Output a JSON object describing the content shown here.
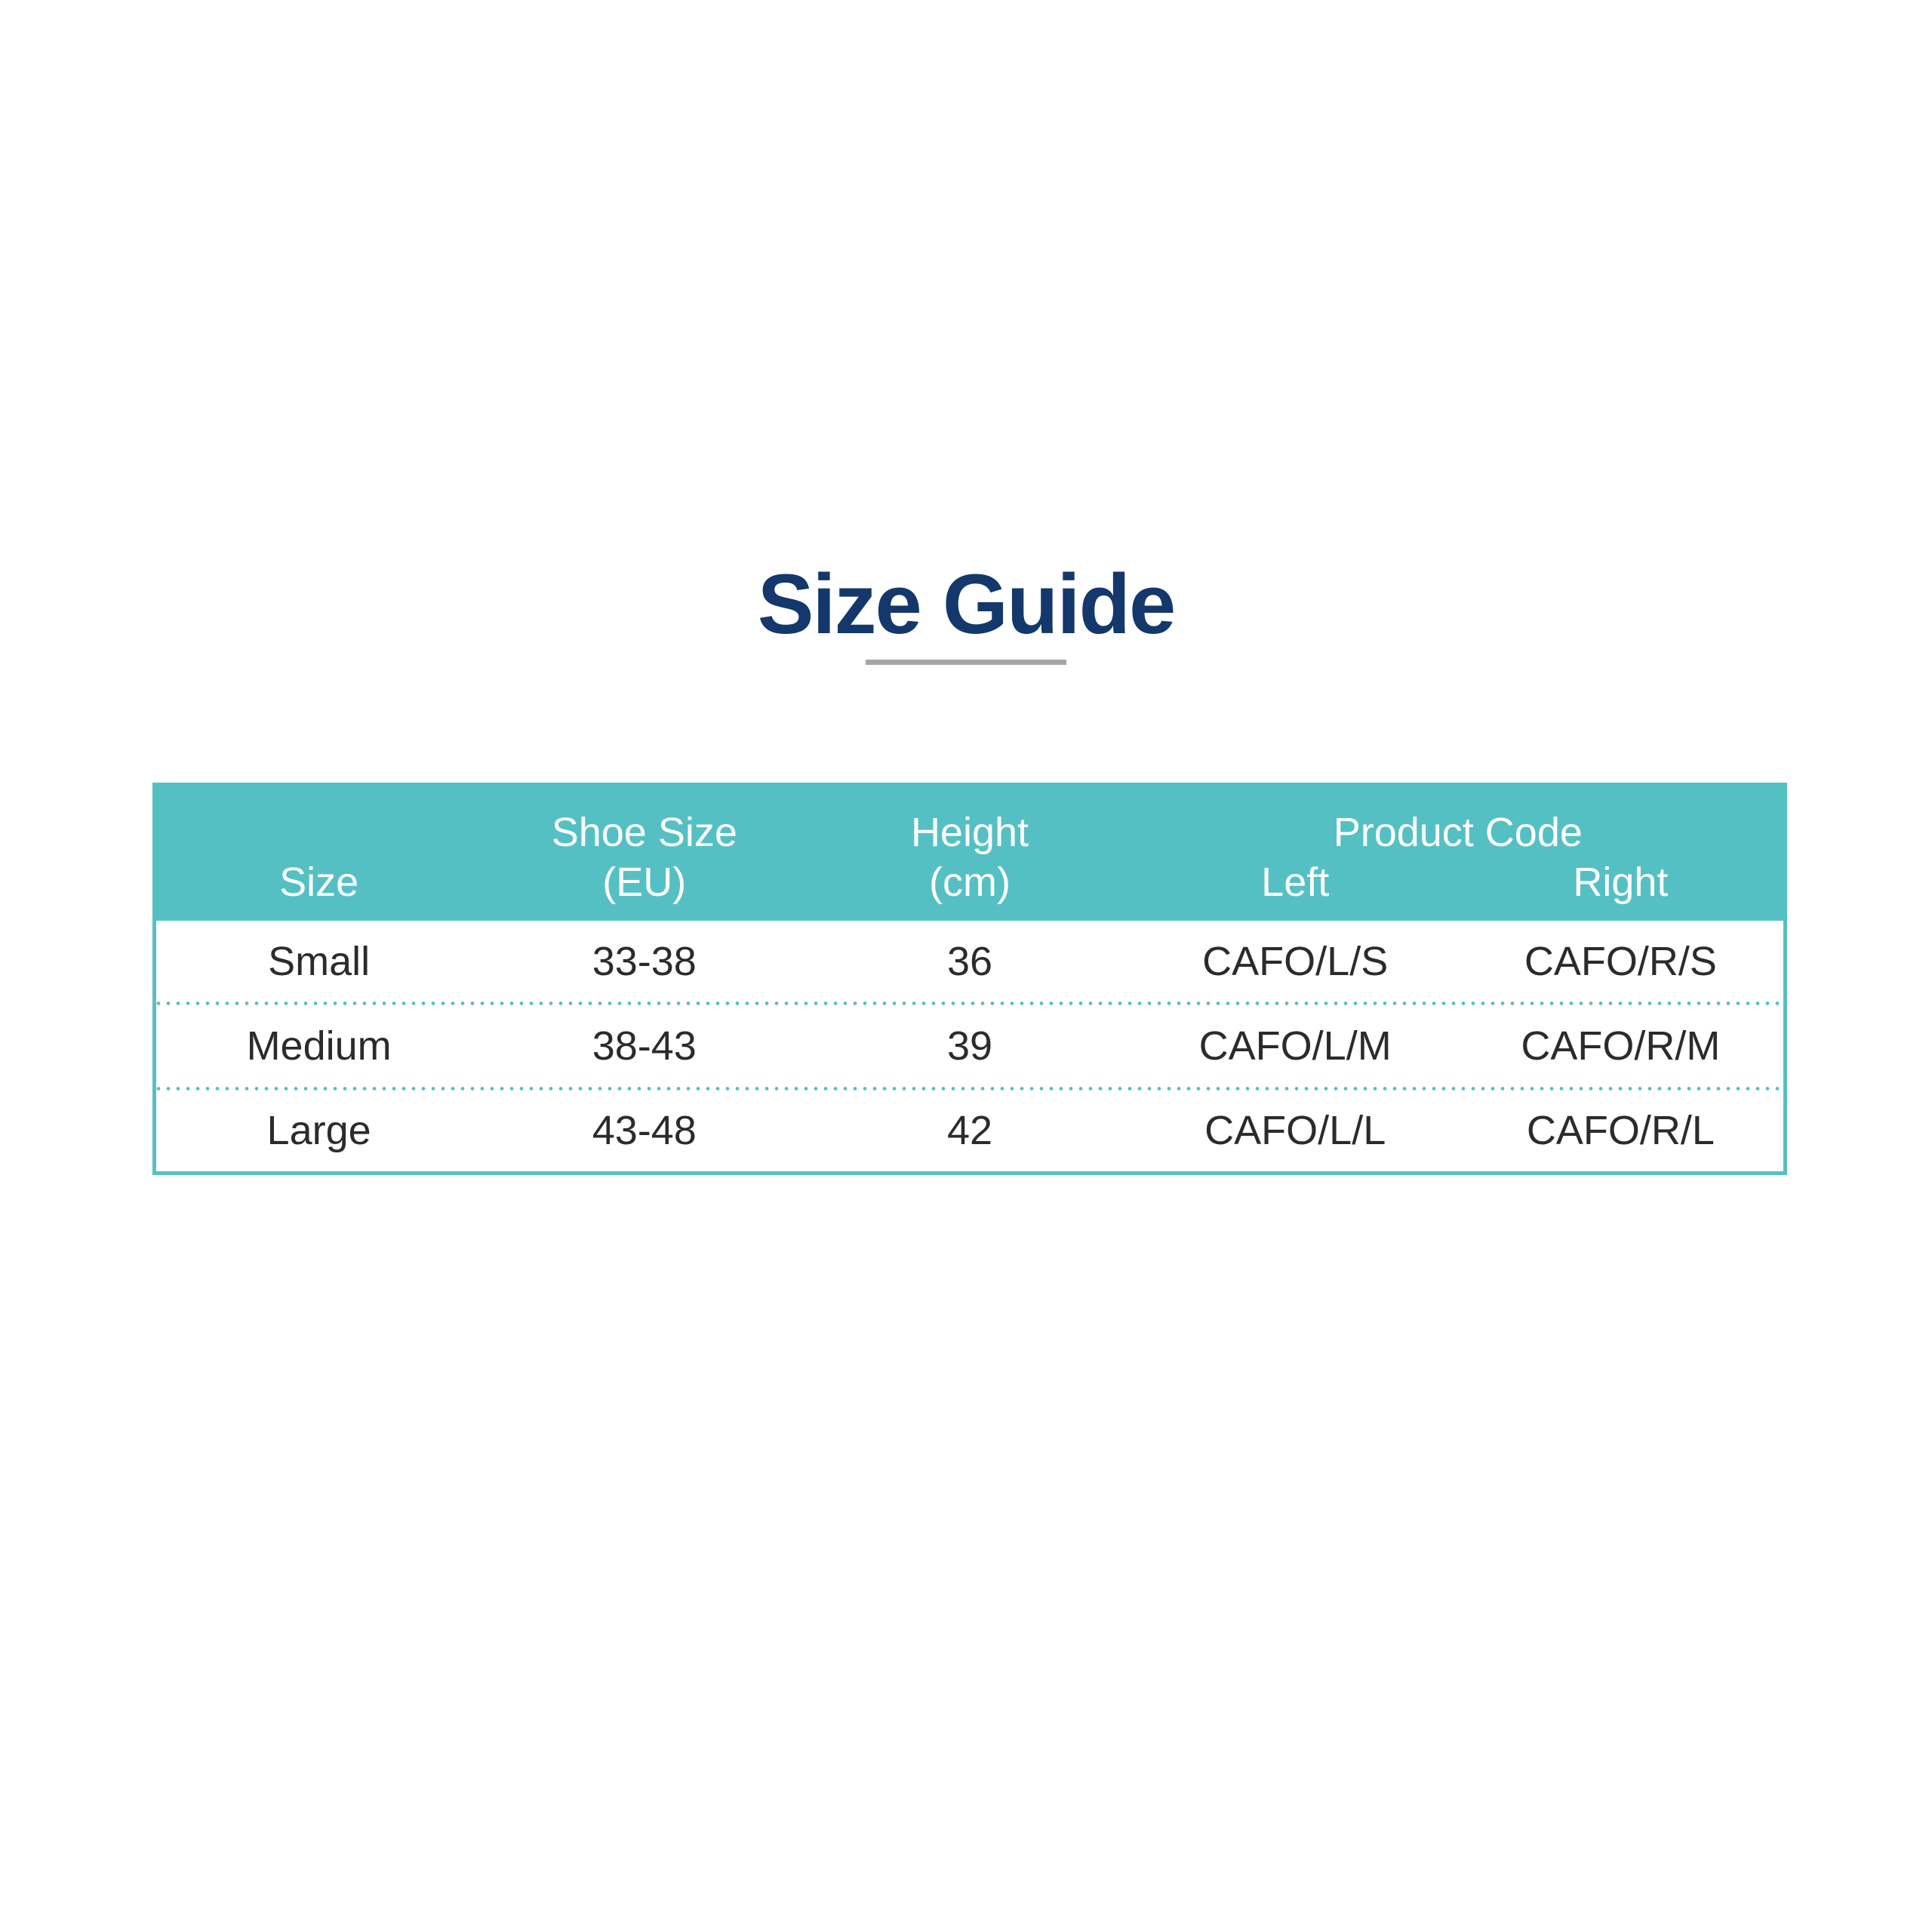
{
  "colors": {
    "accent_teal": "#55c0c3",
    "title_navy": "#14386b",
    "underline_gray": "#a6a6a6",
    "body_text": "#2b2b2b",
    "header_text": "#ffffff",
    "background": "#ffffff"
  },
  "title": {
    "text": "Size Guide"
  },
  "table": {
    "header": {
      "size": "Size",
      "shoe_size_line1": "Shoe Size",
      "shoe_size_line2": "(EU)",
      "height_line1": "Height",
      "height_line2": "(cm)",
      "product_code_group": "Product Code",
      "left": "Left",
      "right": "Right"
    },
    "rows": [
      {
        "size": "Small",
        "shoe_size": "33-38",
        "height": "36",
        "code_left": "CAFO/L/S",
        "code_right": "CAFO/R/S"
      },
      {
        "size": "Medium",
        "shoe_size": "38-43",
        "height": "39",
        "code_left": "CAFO/L/M",
        "code_right": "CAFO/R/M"
      },
      {
        "size": "Large",
        "shoe_size": "43-48",
        "height": "42",
        "code_left": "CAFO/L/L",
        "code_right": "CAFO/R/L"
      }
    ]
  },
  "chart_data": {
    "type": "table",
    "title": "Size Guide",
    "columns": [
      "Size",
      "Shoe Size (EU)",
      "Height (cm)",
      "Product Code Left",
      "Product Code Right"
    ],
    "rows": [
      [
        "Small",
        "33-38",
        "36",
        "CAFO/L/S",
        "CAFO/R/S"
      ],
      [
        "Medium",
        "38-43",
        "39",
        "CAFO/L/M",
        "CAFO/R/M"
      ],
      [
        "Large",
        "43-48",
        "42",
        "CAFO/L/L",
        "CAFO/R/L"
      ]
    ],
    "layout": {
      "header_background": "#55c0c3",
      "header_text_color": "#ffffff",
      "row_separator_style": "dotted teal",
      "outer_border": "5px solid teal"
    }
  }
}
